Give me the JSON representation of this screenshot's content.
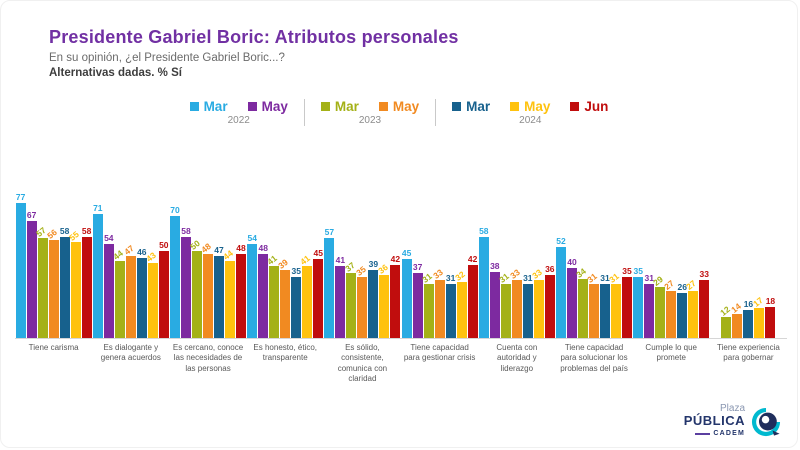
{
  "header": {
    "title": "Presidente Gabriel Boric: Atributos personales",
    "subtitle": "En su opinión, ¿el Presidente Gabriel Boric...?",
    "note": "Alternativas dadas. % Sí"
  },
  "colors": {
    "title": "#7130a3",
    "baseline": "#d6d6d6",
    "category_label": "#595959",
    "year_label": "#8c8c8c"
  },
  "legend": {
    "groups": [
      {
        "year": "2022",
        "items": [
          {
            "label": "Mar",
            "color": "#29abe2"
          },
          {
            "label": "May",
            "color": "#7d2aa0"
          }
        ]
      },
      {
        "year": "2023",
        "items": [
          {
            "label": "Mar",
            "color": "#a4b117"
          },
          {
            "label": "May",
            "color": "#f18a21"
          }
        ]
      },
      {
        "year": "2024",
        "items": [
          {
            "label": "Mar",
            "color": "#17618d"
          },
          {
            "label": "May",
            "color": "#ffc20e"
          },
          {
            "label": "Jun",
            "color": "#c00d0d"
          }
        ]
      }
    ]
  },
  "chart_data": {
    "type": "bar",
    "title": "Presidente Gabriel Boric: Atributos personales",
    "ylabel": "% Sí",
    "ylim": [
      0,
      100
    ],
    "grid": false,
    "legend_position": "top-center",
    "categories": [
      "Tiene carisma",
      "Es dialogante y genera acuerdos",
      "Es cercano, conoce las necesidades de las personas",
      "Es honesto, ético, transparente",
      "Es sólido, consistente, comunica con claridad",
      "Tiene capacidad para gestionar crisis",
      "Cuenta con autoridad y liderazgo",
      "Tiene capacidad para solucionar los problemas del país",
      "Cumple lo que promete",
      "Tiene experiencia para gobernar"
    ],
    "series": [
      {
        "name": "Mar 2022",
        "color": "#29abe2",
        "values": [
          77,
          71,
          70,
          54,
          57,
          45,
          58,
          52,
          35,
          null
        ]
      },
      {
        "name": "May 2022",
        "color": "#7d2aa0",
        "values": [
          67,
          54,
          58,
          48,
          41,
          37,
          38,
          40,
          31,
          null
        ]
      },
      {
        "name": "Mar 2023",
        "color": "#a4b117",
        "values": [
          57,
          44,
          50,
          41,
          37,
          31,
          31,
          34,
          29,
          12
        ]
      },
      {
        "name": "May 2023",
        "color": "#f18a21",
        "values": [
          56,
          47,
          48,
          39,
          35,
          33,
          33,
          31,
          27,
          14
        ]
      },
      {
        "name": "Mar 2024",
        "color": "#17618d",
        "values": [
          58,
          46,
          47,
          35,
          39,
          31,
          31,
          31,
          26,
          16
        ]
      },
      {
        "name": "May 2024",
        "color": "#ffc20e",
        "values": [
          55,
          43,
          44,
          41,
          36,
          32,
          33,
          31,
          27,
          17
        ]
      },
      {
        "name": "Jun 2024",
        "color": "#c00d0d",
        "values": [
          58,
          50,
          48,
          45,
          42,
          42,
          36,
          35,
          33,
          18
        ]
      }
    ]
  },
  "logo": {
    "line1": "Plaza",
    "line2": "PÚBLICA",
    "line3": "CADEM"
  }
}
